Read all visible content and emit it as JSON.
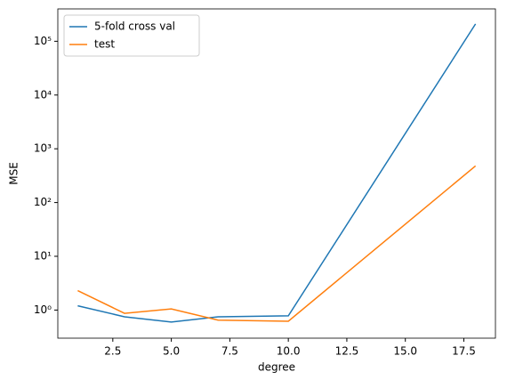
{
  "chart_data": {
    "type": "line",
    "x_label": "degree",
    "y_label": "MSE",
    "x": [
      1,
      3,
      5,
      7,
      10,
      18
    ],
    "series": [
      {
        "name": "5-fold cross val",
        "color": "#1f77b4",
        "values": [
          1.2,
          0.75,
          0.6,
          0.75,
          0.78,
          210000
        ]
      },
      {
        "name": "test",
        "color": "#ff7f0e",
        "values": [
          2.3,
          0.87,
          1.05,
          0.65,
          0.62,
          480
        ]
      }
    ],
    "xlim": [
      0.15,
      18.85
    ],
    "xticks": [
      2.5,
      {
        "value": 5,
        "label": "5.0"
      },
      7.5,
      {
        "value": 10,
        "label": "10.0"
      },
      12.5,
      {
        "value": 15,
        "label": "15.0"
      },
      17.5
    ],
    "ylim": [
      0.3,
      400000
    ],
    "yticks": [
      {
        "value": 1,
        "label": "10⁰"
      },
      {
        "value": 10,
        "label": "10¹"
      },
      {
        "value": 100,
        "label": "10²"
      },
      {
        "value": 1000,
        "label": "10³"
      },
      {
        "value": 10000,
        "label": "10⁴"
      },
      {
        "value": 100000,
        "label": "10⁵"
      }
    ],
    "log_y": true,
    "grid": false,
    "legend": "upper left"
  }
}
